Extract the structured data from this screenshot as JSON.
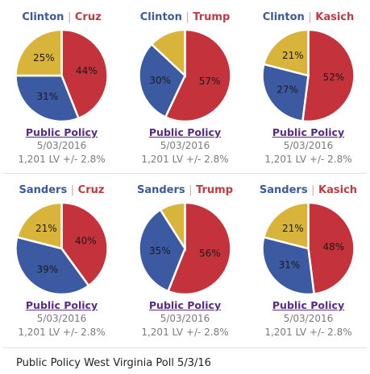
{
  "chart_data": [
    {
      "type": "pie",
      "title_dem": "Clinton",
      "title_sep": "|",
      "title_rep": "Cruz",
      "slices": [
        {
          "label": "Clinton",
          "value": 31,
          "text": "31%",
          "color": "#3b5aa2"
        },
        {
          "label": "Cruz",
          "value": 44,
          "text": "44%",
          "color": "#c4323b"
        },
        {
          "label": "Undecided",
          "value": 25,
          "text": "25%",
          "color": "#d9b43a"
        }
      ],
      "source": "Public Policy",
      "date": "5/03/2016",
      "sample": "1,201 LV +/- 2.8%"
    },
    {
      "type": "pie",
      "title_dem": "Clinton",
      "title_sep": "|",
      "title_rep": "Trump",
      "slices": [
        {
          "label": "Clinton",
          "value": 30,
          "text": "30%",
          "color": "#3b5aa2"
        },
        {
          "label": "Trump",
          "value": 57,
          "text": "57%",
          "color": "#c4323b"
        },
        {
          "label": "Undecided",
          "value": 13,
          "text": "",
          "color": "#d9b43a"
        }
      ],
      "source": "Public Policy",
      "date": "5/03/2016",
      "sample": "1,201 LV +/- 2.8%"
    },
    {
      "type": "pie",
      "title_dem": "Clinton",
      "title_sep": "|",
      "title_rep": "Kasich",
      "slices": [
        {
          "label": "Clinton",
          "value": 27,
          "text": "27%",
          "color": "#3b5aa2"
        },
        {
          "label": "Kasich",
          "value": 52,
          "text": "52%",
          "color": "#c4323b"
        },
        {
          "label": "Undecided",
          "value": 21,
          "text": "21%",
          "color": "#d9b43a"
        }
      ],
      "source": "Public Policy",
      "date": "5/03/2016",
      "sample": "1,201 LV +/- 2.8%"
    },
    {
      "type": "pie",
      "title_dem": "Sanders",
      "title_sep": "|",
      "title_rep": "Cruz",
      "slices": [
        {
          "label": "Sanders",
          "value": 39,
          "text": "39%",
          "color": "#3b5aa2"
        },
        {
          "label": "Cruz",
          "value": 40,
          "text": "40%",
          "color": "#c4323b"
        },
        {
          "label": "Undecided",
          "value": 21,
          "text": "21%",
          "color": "#d9b43a"
        }
      ],
      "source": "Public Policy",
      "date": "5/03/2016",
      "sample": "1,201 LV +/- 2.8%"
    },
    {
      "type": "pie",
      "title_dem": "Sanders",
      "title_sep": "|",
      "title_rep": "Trump",
      "slices": [
        {
          "label": "Sanders",
          "value": 35,
          "text": "35%",
          "color": "#3b5aa2"
        },
        {
          "label": "Trump",
          "value": 56,
          "text": "56%",
          "color": "#c4323b"
        },
        {
          "label": "Undecided",
          "value": 9,
          "text": "",
          "color": "#d9b43a"
        }
      ],
      "source": "Public Policy",
      "date": "5/03/2016",
      "sample": "1,201 LV +/- 2.8%"
    },
    {
      "type": "pie",
      "title_dem": "Sanders",
      "title_sep": "|",
      "title_rep": "Kasich",
      "slices": [
        {
          "label": "Sanders",
          "value": 31,
          "text": "31%",
          "color": "#3b5aa2"
        },
        {
          "label": "Kasich",
          "value": 48,
          "text": "48%",
          "color": "#c4323b"
        },
        {
          "label": "Undecided",
          "value": 21,
          "text": "21%",
          "color": "#d9b43a"
        }
      ],
      "source": "Public Policy",
      "date": "5/03/2016",
      "sample": "1,201 LV +/- 2.8%"
    }
  ],
  "caption": "Public Policy West Virginia Poll 5/3/16"
}
